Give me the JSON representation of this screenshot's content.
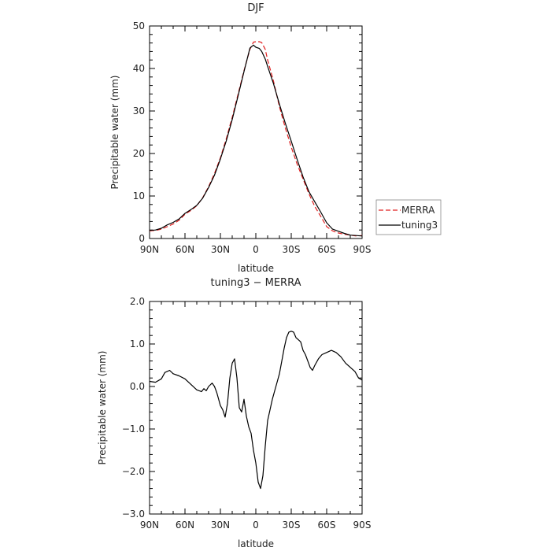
{
  "chart_data": [
    {
      "type": "line",
      "title": "DJF",
      "xlabel": "latitude",
      "ylabel": "Precipitable water  (mm)",
      "xlim": [
        90,
        -90
      ],
      "ylim": [
        0,
        50
      ],
      "x_ticks": [
        90,
        60,
        30,
        0,
        -30,
        -60,
        -90
      ],
      "x_tick_labels": [
        "90N",
        "60N",
        "30N",
        "0",
        "30S",
        "60S",
        "90S"
      ],
      "y_ticks": [
        0,
        10,
        20,
        30,
        40,
        50
      ],
      "y_tick_labels": [
        "0",
        "10",
        "20",
        "30",
        "40",
        "50"
      ],
      "legend": "outside-right",
      "series": [
        {
          "name": "MERRA",
          "color": "#e02020",
          "dash": "dashed",
          "x": [
            90,
            85,
            80,
            75,
            70,
            65,
            60,
            55,
            50,
            45,
            40,
            35,
            30,
            25,
            20,
            15,
            10,
            5,
            2,
            0,
            -3,
            -5,
            -8,
            -10,
            -15,
            -20,
            -25,
            -30,
            -35,
            -40,
            -45,
            -50,
            -55,
            -60,
            -65,
            -70,
            -75,
            -80,
            -85,
            -90
          ],
          "y": [
            1.8,
            1.9,
            2.2,
            2.8,
            3.4,
            4.3,
            5.7,
            6.6,
            7.7,
            9.6,
            12.2,
            15.3,
            19.0,
            23.5,
            28.5,
            34.0,
            39.5,
            44.5,
            46.2,
            46.3,
            46.3,
            46.1,
            44.5,
            42.0,
            37.0,
            31.0,
            26.0,
            21.5,
            17.5,
            14.0,
            10.5,
            7.5,
            5.2,
            2.8,
            1.8,
            1.3,
            1.0,
            0.8,
            0.6,
            0.7
          ]
        },
        {
          "name": "tuning3",
          "color": "#000000",
          "dash": "solid",
          "x": [
            90,
            85,
            80,
            75,
            70,
            65,
            60,
            55,
            50,
            45,
            40,
            35,
            30,
            25,
            20,
            15,
            10,
            5,
            2,
            0,
            -3,
            -5,
            -8,
            -10,
            -15,
            -20,
            -25,
            -30,
            -35,
            -40,
            -45,
            -50,
            -55,
            -60,
            -65,
            -70,
            -75,
            -80,
            -85,
            -90
          ],
          "y": [
            1.9,
            2.0,
            2.4,
            3.2,
            3.8,
            4.6,
            5.9,
            6.8,
            7.8,
            9.5,
            12.0,
            14.9,
            18.7,
            23.0,
            28.0,
            33.6,
            39.3,
            44.8,
            45.5,
            45.0,
            44.7,
            44.0,
            42.2,
            40.5,
            36.4,
            31.6,
            27.1,
            22.9,
            18.6,
            14.5,
            11.0,
            8.6,
            6.2,
            3.7,
            2.2,
            1.7,
            1.2,
            0.8,
            0.7,
            0.6
          ]
        }
      ]
    },
    {
      "type": "line",
      "title": "tuning3 − MERRA",
      "xlabel": "latitude",
      "ylabel": "Precipitable water  (mm)",
      "xlim": [
        90,
        -90
      ],
      "ylim": [
        -3.0,
        2.0
      ],
      "x_ticks": [
        90,
        60,
        30,
        0,
        -30,
        -60,
        -90
      ],
      "x_tick_labels": [
        "90N",
        "60N",
        "30N",
        "0",
        "30S",
        "60S",
        "90S"
      ],
      "y_ticks": [
        -3,
        -2,
        -1,
        0,
        1,
        2
      ],
      "y_tick_labels": [
        "−3.0",
        "−2.0",
        "−1.0",
        "0.0",
        "1.0",
        "2.0"
      ],
      "series": [
        {
          "color": "#000000",
          "dash": "solid",
          "x": [
            90,
            85,
            80,
            77,
            73,
            70,
            65,
            60,
            55,
            50,
            46,
            44,
            42,
            40,
            37,
            35,
            33,
            30,
            28,
            26,
            24,
            22,
            20,
            18,
            16,
            14,
            12,
            10,
            8,
            6,
            4,
            2,
            0,
            -2,
            -4,
            -6,
            -8,
            -10,
            -12,
            -14,
            -16,
            -18,
            -20,
            -22,
            -24,
            -26,
            -28,
            -30,
            -32,
            -34,
            -36,
            -38,
            -40,
            -42,
            -44,
            -46,
            -48,
            -50,
            -53,
            -56,
            -60,
            -64,
            -68,
            -72,
            -76,
            -80,
            -84,
            -87,
            -90
          ],
          "y": [
            0.12,
            0.1,
            0.18,
            0.33,
            0.38,
            0.3,
            0.25,
            0.18,
            0.05,
            -0.08,
            -0.12,
            -0.05,
            -0.1,
            0.0,
            0.08,
            0.0,
            -0.15,
            -0.45,
            -0.55,
            -0.72,
            -0.4,
            0.2,
            0.55,
            0.65,
            0.2,
            -0.5,
            -0.6,
            -0.3,
            -0.7,
            -0.95,
            -1.1,
            -1.5,
            -1.8,
            -2.25,
            -2.4,
            -2.1,
            -1.4,
            -0.8,
            -0.55,
            -0.3,
            -0.1,
            0.1,
            0.3,
            0.6,
            0.9,
            1.15,
            1.28,
            1.3,
            1.28,
            1.15,
            1.1,
            1.05,
            0.85,
            0.75,
            0.6,
            0.45,
            0.38,
            0.5,
            0.65,
            0.75,
            0.8,
            0.85,
            0.8,
            0.7,
            0.55,
            0.45,
            0.35,
            0.2,
            0.15
          ]
        }
      ]
    }
  ]
}
